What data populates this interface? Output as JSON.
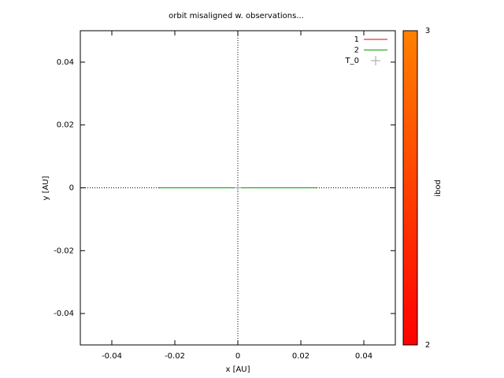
{
  "chart_data": {
    "type": "line",
    "title": "orbit misaligned w. observations...",
    "xlabel": "x [AU]",
    "ylabel": "y [AU]",
    "xlim": [
      -0.05,
      0.05
    ],
    "ylim": [
      -0.05,
      0.05
    ],
    "xticks": [
      -0.04,
      -0.02,
      0,
      0.02,
      0.04
    ],
    "yticks": [
      -0.04,
      -0.02,
      0,
      0.02,
      0.04
    ],
    "zeroaxis": true,
    "legend": "top-right",
    "series": [
      {
        "name": "1",
        "color": "#e00000",
        "x": [
          -0.025,
          0.025
        ],
        "y": [
          0,
          0
        ]
      },
      {
        "name": "2",
        "color": "#00a000",
        "x": [
          -0.025,
          0.025
        ],
        "y": [
          0,
          0
        ]
      },
      {
        "name": "T_0",
        "color": "#a0a0a0",
        "marker": "plus",
        "x": [
          0
        ],
        "y": [
          0
        ]
      }
    ],
    "colorbar": {
      "label": "ibod",
      "lim": [
        2,
        3
      ],
      "ticks": [
        2,
        3
      ],
      "colors": [
        "#ff0000",
        "#ff8000"
      ]
    }
  }
}
